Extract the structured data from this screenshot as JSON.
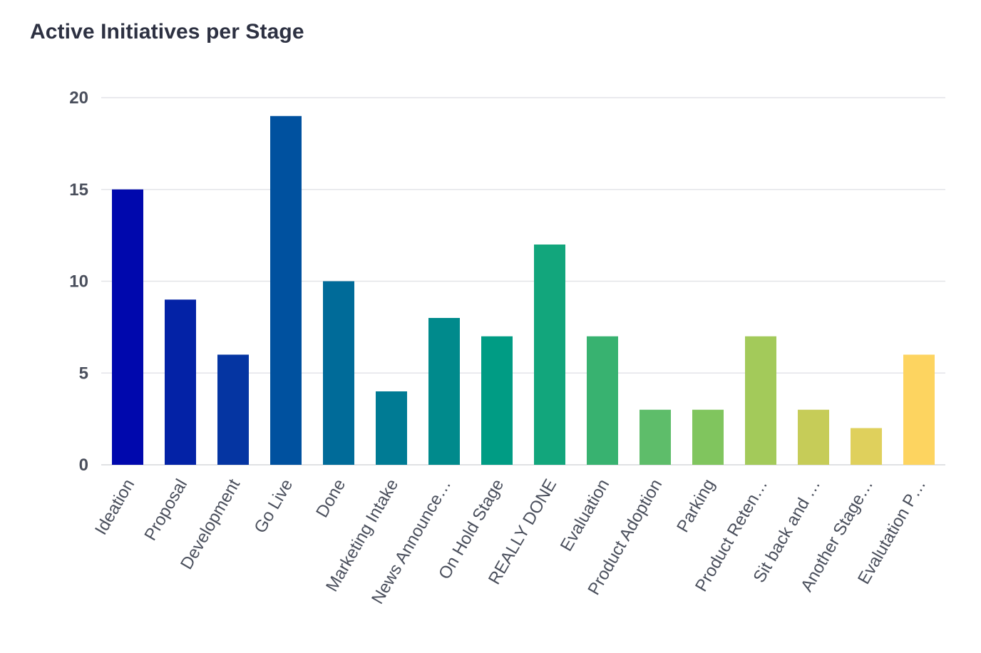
{
  "chart_data": {
    "type": "bar",
    "title": "Active Initiatives per Stage",
    "xlabel": "",
    "ylabel": "",
    "ylim": [
      0,
      20
    ],
    "yticks": [
      0,
      5,
      10,
      15,
      20
    ],
    "grid": true,
    "categories": [
      "Ideation",
      "Proposal",
      "Development",
      "Go Live",
      "Done",
      "Marketing Intake",
      "News Announce…",
      "On Hold Stage",
      "REALLY DONE",
      "Evaluation",
      "Product Adoption",
      "Parking",
      "Product Reten…",
      "Sit back and …",
      "Another Stage…",
      "Evalutation P…"
    ],
    "values": [
      15,
      9,
      6,
      19,
      10,
      4,
      8,
      7,
      12,
      7,
      3,
      3,
      7,
      3,
      2,
      6
    ],
    "colors": [
      "#0008ad",
      "#0322a6",
      "#0535a2",
      "#00519f",
      "#006b99",
      "#007b94",
      "#008a8c",
      "#009c84",
      "#12a67c",
      "#38b270",
      "#5ebd6a",
      "#80c55e",
      "#a3ca5a",
      "#c6cc58",
      "#dfd05c",
      "#fdd460"
    ]
  }
}
